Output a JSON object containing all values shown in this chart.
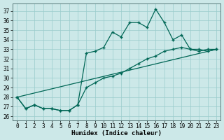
{
  "xlabel": "Humidex (Indice chaleur)",
  "bg_color": "#cce8e8",
  "line_color": "#006655",
  "grid_color": "#99cccc",
  "xlim": [
    -0.5,
    23.5
  ],
  "ylim": [
    25.6,
    37.8
  ],
  "yticks": [
    26,
    27,
    28,
    29,
    30,
    31,
    32,
    33,
    34,
    35,
    36,
    37
  ],
  "xticks": [
    0,
    1,
    2,
    3,
    4,
    5,
    6,
    7,
    8,
    9,
    10,
    11,
    12,
    13,
    14,
    15,
    16,
    17,
    18,
    19,
    20,
    21,
    22,
    23
  ],
  "line1_x": [
    0,
    1,
    2,
    3,
    4,
    5,
    6,
    7,
    8,
    9,
    10,
    11,
    12,
    13,
    14,
    15,
    16,
    17,
    18,
    19,
    20,
    21,
    22,
    23
  ],
  "line1_y": [
    28.0,
    26.8,
    27.2,
    26.8,
    26.8,
    26.6,
    26.6,
    27.2,
    32.6,
    32.8,
    33.2,
    34.8,
    34.3,
    35.8,
    35.8,
    35.3,
    37.2,
    35.8,
    34.0,
    34.5,
    33.0,
    32.8,
    33.0,
    33.0
  ],
  "line2_x": [
    0,
    1,
    2,
    3,
    4,
    5,
    6,
    7,
    8,
    9,
    10,
    11,
    12,
    13,
    14,
    15,
    16,
    17,
    18,
    19,
    20,
    21,
    22,
    23
  ],
  "line2_y": [
    28.0,
    26.8,
    27.2,
    26.8,
    26.8,
    26.6,
    26.6,
    27.2,
    29.0,
    29.5,
    30.0,
    30.2,
    30.5,
    31.0,
    31.5,
    32.0,
    32.3,
    32.8,
    33.0,
    33.2,
    33.0,
    33.0,
    32.8,
    33.0
  ],
  "line3_x": [
    0,
    23
  ],
  "line3_y": [
    28.0,
    33.0
  ]
}
